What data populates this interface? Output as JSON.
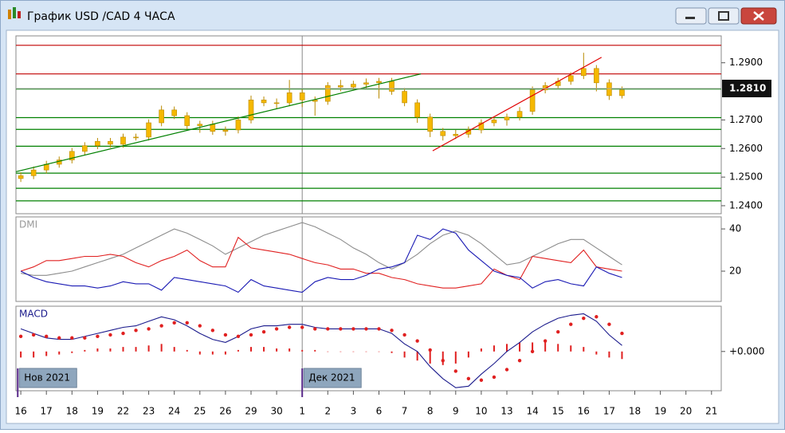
{
  "window": {
    "title": "График USD /CAD  4 ЧАСА"
  },
  "chart_data": [
    {
      "type": "candlestick",
      "x": [
        0,
        0.5,
        1,
        1.5,
        2,
        2.5,
        3,
        3.5,
        4,
        4.5,
        5,
        5.5,
        6,
        6.5,
        7,
        7.5,
        8,
        8.5,
        9,
        9.5,
        10,
        10.5,
        11,
        11.5,
        12,
        12.5,
        13,
        13.5,
        14,
        14.5,
        15,
        15.5,
        16,
        16.5,
        17,
        17.5,
        18,
        18.5,
        19,
        19.5,
        20,
        20.5,
        21,
        21.5,
        22,
        22.5,
        23,
        23.5
      ],
      "open": [
        1.2495,
        1.2505,
        1.2525,
        1.2545,
        1.256,
        1.259,
        1.261,
        1.2625,
        1.2615,
        1.264,
        1.264,
        1.269,
        1.2735,
        1.2715,
        1.268,
        1.2685,
        1.266,
        1.2665,
        1.27,
        1.277,
        1.276,
        1.276,
        1.2795,
        1.277,
        1.2765,
        1.282,
        1.2815,
        1.2825,
        1.283,
        1.2835,
        1.28,
        1.276,
        1.271,
        1.266,
        1.2645,
        1.265,
        1.2665,
        1.269,
        1.27,
        1.271,
        1.273,
        1.2805,
        1.282,
        1.2835,
        1.2855,
        1.288,
        1.283,
        1.2785
      ],
      "high": [
        1.2517,
        1.2537,
        1.2557,
        1.2572,
        1.2602,
        1.2622,
        1.2637,
        1.2637,
        1.2652,
        1.2652,
        1.2702,
        1.275,
        1.2747,
        1.2727,
        1.2697,
        1.2697,
        1.2677,
        1.2712,
        1.2785,
        1.2782,
        1.2775,
        1.284,
        1.2807,
        1.2782,
        1.2832,
        1.284,
        1.2837,
        1.2845,
        1.2847,
        1.2847,
        1.2812,
        1.2772,
        1.2722,
        1.2672,
        1.2665,
        1.2677,
        1.2702,
        1.2712,
        1.2722,
        1.2745,
        1.2817,
        1.2832,
        1.2847,
        1.2867,
        1.2935,
        1.2892,
        1.2842,
        1.2817
      ],
      "low": [
        1.2483,
        1.2493,
        1.2513,
        1.2533,
        1.2548,
        1.2578,
        1.2598,
        1.2603,
        1.2603,
        1.2628,
        1.2628,
        1.2678,
        1.2703,
        1.2668,
        1.2655,
        1.2648,
        1.2645,
        1.2653,
        1.2688,
        1.2748,
        1.274,
        1.2748,
        1.2745,
        1.2715,
        1.2753,
        1.28,
        1.2803,
        1.281,
        1.2775,
        1.2788,
        1.2748,
        1.269,
        1.264,
        1.2628,
        1.2633,
        1.2638,
        1.2653,
        1.2678,
        1.268,
        1.2698,
        1.2718,
        1.2793,
        1.2808,
        1.2823,
        1.2843,
        1.28,
        1.277,
        1.2775
      ],
      "close": [
        1.2505,
        1.2525,
        1.2545,
        1.256,
        1.259,
        1.261,
        1.2625,
        1.2615,
        1.264,
        1.264,
        1.269,
        1.2735,
        1.2715,
        1.268,
        1.2685,
        1.266,
        1.2665,
        1.27,
        1.277,
        1.276,
        1.276,
        1.2795,
        1.277,
        1.2765,
        1.282,
        1.2815,
        1.2825,
        1.283,
        1.2835,
        1.28,
        1.276,
        1.271,
        1.266,
        1.2645,
        1.265,
        1.2665,
        1.269,
        1.27,
        1.271,
        1.273,
        1.2805,
        1.282,
        1.2835,
        1.2855,
        1.288,
        1.283,
        1.2785,
        1.2805
      ],
      "color": "#f5b800",
      "edge_color": "#b98a00",
      "xlim": [
        -0.19,
        27.38
      ],
      "ylim": [
        1.2372,
        1.2994
      ],
      "yticks": [
        {
          "value": 1.29,
          "label": "1.2900"
        },
        {
          "value": 1.27,
          "label": "1.2700"
        },
        {
          "value": 1.26,
          "label": "1.2600"
        },
        {
          "value": 1.25,
          "label": "1.2500"
        },
        {
          "value": 1.24,
          "label": "1.2400"
        }
      ],
      "hlines": [
        {
          "value": 1.2961,
          "color": "#c00000"
        },
        {
          "value": 1.2861,
          "color": "#c00000"
        },
        {
          "value": 1.2808,
          "color": "#008000"
        },
        {
          "value": 1.2708,
          "color": "#008000"
        },
        {
          "value": 1.2667,
          "color": "#008000"
        },
        {
          "value": 1.2608,
          "color": "#008000"
        },
        {
          "value": 1.2514,
          "color": "#008000"
        },
        {
          "value": 1.2461,
          "color": "#008000"
        },
        {
          "value": 1.2417,
          "color": "#008000"
        }
      ],
      "trendlines": [
        {
          "x": [
            -0.19,
            15.64
          ],
          "y": [
            1.2519,
            1.2861
          ],
          "color": "#008000"
        },
        {
          "x": [
            16.1,
            22.7
          ],
          "y": [
            1.2592,
            1.2919
          ],
          "color": "#e00000"
        }
      ],
      "last_price": {
        "value": 1.281,
        "label": "1.2810"
      }
    },
    {
      "type": "line",
      "title": "DMI",
      "x": [
        0,
        0.5,
        1,
        1.5,
        2,
        2.5,
        3,
        3.5,
        4,
        4.5,
        5,
        5.5,
        6,
        6.5,
        7,
        7.5,
        8,
        8.5,
        9,
        9.5,
        10,
        10.5,
        11,
        11.5,
        12,
        12.5,
        13,
        13.5,
        14,
        14.5,
        15,
        15.5,
        16,
        16.5,
        17,
        17.5,
        18,
        18.5,
        19,
        19.5,
        20,
        20.5,
        21,
        21.5,
        22,
        22.5,
        23,
        23.5
      ],
      "series": [
        {
          "color": "#8c8c8c",
          "kind": "line",
          "values": [
            19,
            18,
            18,
            19,
            20,
            22,
            24,
            26,
            28,
            31,
            34,
            37,
            40,
            38,
            35,
            32,
            28,
            31,
            34,
            37,
            39,
            41,
            43,
            41,
            38,
            35,
            31,
            28,
            24,
            21,
            24,
            28,
            33,
            37,
            39,
            37,
            33,
            28,
            23,
            24,
            27,
            30,
            33,
            35,
            35,
            31,
            27,
            23
          ]
        },
        {
          "color": "#e02020",
          "kind": "line",
          "values": [
            20,
            22,
            25,
            25,
            26,
            27,
            27,
            28,
            27,
            24,
            22,
            25,
            27,
            30,
            25,
            22,
            22,
            36,
            31,
            30,
            29,
            28,
            26,
            24,
            23,
            21,
            21,
            19,
            19,
            17,
            16,
            14,
            13,
            12,
            12,
            13,
            14,
            21,
            18,
            16,
            27,
            26,
            25,
            24,
            30,
            22,
            21,
            20
          ]
        },
        {
          "color": "#1a1ab4",
          "kind": "line",
          "values": [
            20,
            17,
            15,
            14,
            13,
            13,
            12,
            13,
            15,
            14,
            14,
            11,
            17,
            16,
            15,
            14,
            13,
            10,
            16,
            13,
            12,
            11,
            10,
            15,
            17,
            16,
            16,
            18,
            21,
            22,
            24,
            37,
            35,
            40,
            38,
            30,
            25,
            20,
            18,
            17,
            12,
            15,
            16,
            14,
            13,
            22,
            19,
            17
          ]
        }
      ],
      "xlim": [
        -0.19,
        27.38
      ],
      "ylim": [
        5.66,
        45.7
      ],
      "yticks": [
        40,
        20
      ]
    },
    {
      "type": "line",
      "title": "MACD",
      "x": [
        0,
        0.5,
        1,
        1.5,
        2,
        2.5,
        3,
        3.5,
        4,
        4.5,
        5,
        5.5,
        6,
        6.5,
        7,
        7.5,
        8,
        8.5,
        9,
        9.5,
        10,
        10.5,
        11,
        11.5,
        12,
        12.5,
        13,
        13.5,
        14,
        14.5,
        15,
        15.5,
        16,
        16.5,
        17,
        17.5,
        18,
        18.5,
        19,
        19.5,
        20,
        20.5,
        21,
        21.5,
        22,
        22.5,
        23,
        23.5
      ],
      "series": [
        {
          "color": "#e02020",
          "kind": "bar",
          "values": [
            -0.0004,
            -0.0004,
            -0.0003,
            -0.0002,
            -0.0001,
            0.0001,
            0.0002,
            0.0002,
            0.0003,
            0.0003,
            0.0004,
            0.0005,
            0.0003,
            0.0001,
            -0.0002,
            -0.0002,
            -0.0002,
            0.0001,
            0.0003,
            0.0003,
            0.0002,
            0.0002,
            0.0001,
            0.0001,
            0.0,
            0.0,
            0.0,
            0.0,
            0.0,
            -0.0001,
            -0.0004,
            -0.0006,
            -0.0008,
            -0.0009,
            -0.0008,
            -0.0004,
            0.0002,
            0.0004,
            0.0005,
            0.0006,
            0.0006,
            0.0006,
            0.0005,
            0.0004,
            0.0003,
            -0.0002,
            -0.0004,
            -0.0005
          ]
        },
        {
          "color": "#1a1a8c",
          "kind": "line",
          "values": [
            0.0015,
            0.0012,
            0.0009,
            0.0008,
            0.0008,
            0.001,
            0.0012,
            0.0014,
            0.0016,
            0.0017,
            0.002,
            0.0023,
            0.0021,
            0.0017,
            0.0012,
            0.0008,
            0.0006,
            0.001,
            0.0015,
            0.0017,
            0.0017,
            0.0018,
            0.0018,
            0.0016,
            0.0015,
            0.0015,
            0.0015,
            0.0015,
            0.0015,
            0.0012,
            0.0005,
            0.0,
            -0.001,
            -0.0018,
            -0.0024,
            -0.0023,
            -0.0015,
            -0.0008,
            0.0,
            0.0006,
            0.0013,
            0.0018,
            0.0022,
            0.0024,
            0.0025,
            0.002,
            0.0011,
            0.0004
          ]
        },
        {
          "color": "#e02020",
          "kind": "dots",
          "values": [
            0.001,
            0.0011,
            0.001,
            0.0009,
            0.0009,
            0.0009,
            0.001,
            0.0011,
            0.0012,
            0.0014,
            0.0015,
            0.0017,
            0.0019,
            0.0019,
            0.0017,
            0.0014,
            0.0011,
            0.001,
            0.0011,
            0.0013,
            0.0015,
            0.0016,
            0.0016,
            0.0015,
            0.0015,
            0.0015,
            0.0015,
            0.0015,
            0.0015,
            0.0014,
            0.0011,
            0.0007,
            0.0001,
            -0.0006,
            -0.0013,
            -0.0018,
            -0.0019,
            -0.0017,
            -0.0012,
            -0.0006,
            0.0,
            0.0007,
            0.0013,
            0.0018,
            0.0022,
            0.0023,
            0.0018,
            0.0012
          ]
        }
      ],
      "xlim": [
        -0.19,
        27.38
      ],
      "ylim": [
        -0.0026,
        0.003
      ],
      "yticks": [
        {
          "value": 0,
          "label": "+0.000"
        }
      ],
      "xticks": [
        {
          "value": 0,
          "label": "16"
        },
        {
          "value": 1,
          "label": "17"
        },
        {
          "value": 2,
          "label": "18"
        },
        {
          "value": 3,
          "label": "19"
        },
        {
          "value": 4,
          "label": "22"
        },
        {
          "value": 5,
          "label": "23"
        },
        {
          "value": 6,
          "label": "24"
        },
        {
          "value": 7,
          "label": "25"
        },
        {
          "value": 8,
          "label": "26"
        },
        {
          "value": 9,
          "label": "29"
        },
        {
          "value": 10,
          "label": "30"
        },
        {
          "value": 11,
          "label": "1"
        },
        {
          "value": 12,
          "label": "2"
        },
        {
          "value": 13,
          "label": "3"
        },
        {
          "value": 14,
          "label": "6"
        },
        {
          "value": 15,
          "label": "7"
        },
        {
          "value": 16,
          "label": "8"
        },
        {
          "value": 17,
          "label": "9"
        },
        {
          "value": 18,
          "label": "10"
        },
        {
          "value": 19,
          "label": "13"
        },
        {
          "value": 20,
          "label": "14"
        },
        {
          "value": 21,
          "label": "15"
        },
        {
          "value": 22,
          "label": "16"
        },
        {
          "value": 23,
          "label": "17"
        },
        {
          "value": 24,
          "label": "18"
        },
        {
          "value": 25,
          "label": "19"
        },
        {
          "value": 26,
          "label": "20"
        },
        {
          "value": 27,
          "label": "21"
        }
      ],
      "month_labels": [
        {
          "value": -0.12,
          "label": "Нов 2021"
        },
        {
          "value": 11,
          "label": "Дек 2021"
        }
      ]
    }
  ]
}
